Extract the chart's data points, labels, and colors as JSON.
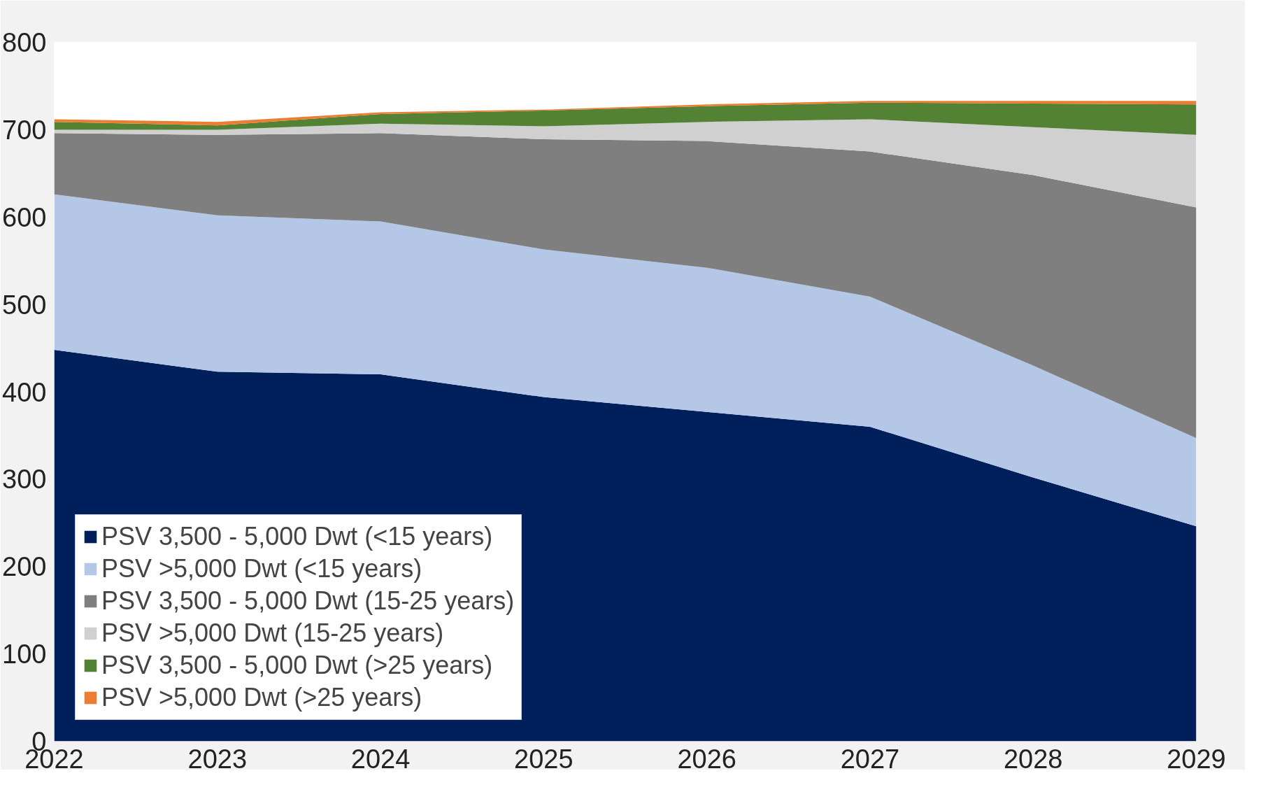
{
  "chart_data": {
    "type": "area",
    "stacked": true,
    "x": [
      2022,
      2023,
      2024,
      2025,
      2026,
      2027,
      2028,
      2029
    ],
    "xlim": [
      2022,
      2029
    ],
    "xticks": [
      2022,
      2023,
      2024,
      2025,
      2026,
      2027,
      2028,
      2029
    ],
    "ylim": [
      0,
      800
    ],
    "yticks": [
      0,
      100,
      200,
      300,
      400,
      500,
      600,
      700,
      800
    ],
    "grid": false,
    "legend": "bottom left",
    "series": [
      {
        "name": "PSV 3,500 - 5,000 Dwt (<15 years)",
        "color": "#001f5b",
        "values": [
          448,
          423,
          420,
          394,
          377,
          360,
          302,
          246
        ]
      },
      {
        "name": "PSV >5,000 Dwt (<15 years)",
        "color": "#b4c7e7",
        "values": [
          178,
          179,
          175,
          169,
          165,
          149,
          128,
          101
        ]
      },
      {
        "name": "PSV 3,500 - 5,000 Dwt (15-25 years)",
        "color": "#7f7f7f",
        "values": [
          70,
          92,
          101,
          126,
          145,
          166,
          218,
          264
        ]
      },
      {
        "name": "PSV >5,000 Dwt (15-25 years)",
        "color": "#d0d0d0",
        "values": [
          4,
          6,
          11,
          15,
          22,
          37,
          55,
          83
        ]
      },
      {
        "name": "PSV 3,500 - 5,000 Dwt (>25 years)",
        "color": "#548235",
        "values": [
          9,
          5,
          11,
          18,
          18,
          19,
          27,
          35
        ]
      },
      {
        "name": "PSV >5,000 Dwt (>25 years)",
        "color": "#ed7d31",
        "values": [
          3,
          4,
          2,
          1,
          2,
          2,
          3,
          4
        ]
      }
    ]
  }
}
